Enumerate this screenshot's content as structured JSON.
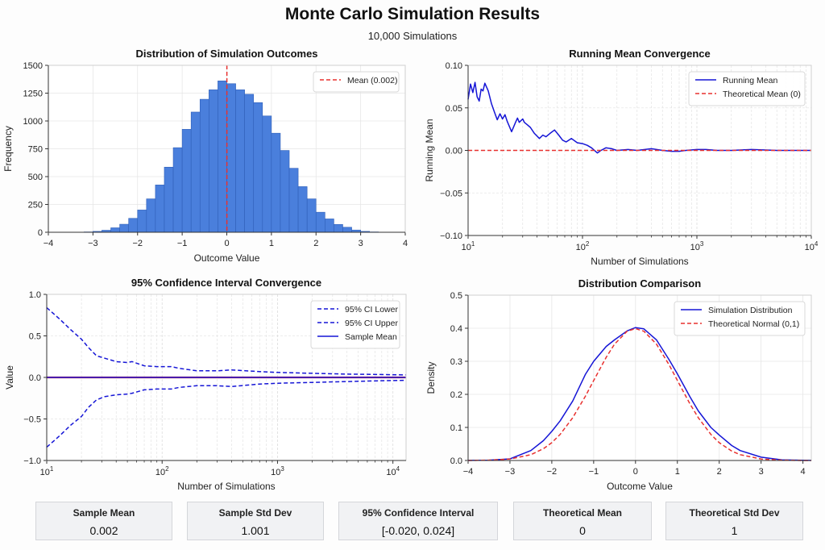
{
  "header": {
    "title": "Monte Carlo Simulation Results",
    "subtitle": "10,000 Simulations"
  },
  "chart_data": [
    {
      "id": "histogram",
      "type": "bar",
      "title": "Distribution of Simulation Outcomes",
      "xlabel": "Outcome Value",
      "ylabel": "Frequency",
      "xlim": [
        -4,
        4
      ],
      "ylim": [
        0,
        1500
      ],
      "xticks": [
        "−4",
        "−3",
        "−2",
        "−1",
        "0",
        "1",
        "2",
        "3",
        "4"
      ],
      "yticks": [
        "0",
        "250",
        "500",
        "750",
        "1000",
        "1250",
        "1500"
      ],
      "bin_width": 0.2,
      "bin_starts": [
        -3.4,
        -3.2,
        -3.0,
        -2.8,
        -2.6,
        -2.4,
        -2.2,
        -2.0,
        -1.8,
        -1.6,
        -1.4,
        -1.2,
        -1.0,
        -0.8,
        -0.6,
        -0.4,
        -0.2,
        0.0,
        0.2,
        0.4,
        0.6,
        0.8,
        1.0,
        1.2,
        1.4,
        1.6,
        1.8,
        2.0,
        2.2,
        2.4,
        2.6,
        2.8,
        3.0,
        3.2
      ],
      "values": [
        1,
        3,
        8,
        18,
        40,
        72,
        125,
        200,
        300,
        425,
        585,
        760,
        925,
        1080,
        1195,
        1280,
        1360,
        1335,
        1280,
        1240,
        1165,
        1045,
        890,
        735,
        575,
        410,
        300,
        180,
        120,
        70,
        45,
        20,
        8,
        3
      ],
      "mean_line": {
        "x": 0.002,
        "color": "#e8312f"
      },
      "legend": [
        {
          "label": "Mean (0.002)",
          "style": "dashed",
          "color": "#e8312f"
        }
      ],
      "legend_position": "top-right",
      "bar_color": "#4a7fdc",
      "grid": true
    },
    {
      "id": "running-mean",
      "type": "line",
      "title": "Running Mean Convergence",
      "xlabel": "Number of Simulations",
      "ylabel": "Running Mean",
      "xscale": "log",
      "xlim": [
        10,
        10000
      ],
      "ylim": [
        -0.1,
        0.1
      ],
      "xticks": [
        "10^1",
        "10^2",
        "10^3",
        "10^4"
      ],
      "yticks": [
        "−0.10",
        "−0.05",
        "0.00",
        "0.05",
        "0.10"
      ],
      "series": [
        {
          "name": "Running Mean",
          "color": "#1515d6",
          "style": "solid",
          "x": [
            10,
            10.5,
            11,
            11.5,
            12,
            12.5,
            13,
            13.5,
            14,
            15,
            16,
            17,
            18,
            19,
            20,
            21,
            22,
            24,
            26,
            27,
            28,
            30,
            31,
            33,
            35,
            38,
            42,
            45,
            48,
            52,
            57,
            62,
            67,
            72,
            80,
            90,
            100,
            110,
            120,
            135,
            145,
            160,
            180,
            200,
            250,
            300,
            350,
            400,
            500,
            600,
            700,
            800,
            1000,
            1200,
            1500,
            2000,
            3000,
            5000,
            7000,
            10000
          ],
          "y": [
            0.06,
            0.078,
            0.068,
            0.08,
            0.063,
            0.058,
            0.072,
            0.07,
            0.079,
            0.07,
            0.055,
            0.045,
            0.036,
            0.043,
            0.037,
            0.042,
            0.034,
            0.022,
            0.033,
            0.038,
            0.033,
            0.037,
            0.033,
            0.03,
            0.027,
            0.02,
            0.014,
            0.018,
            0.016,
            0.02,
            0.024,
            0.018,
            0.012,
            0.01,
            0.014,
            0.009,
            0.008,
            0.006,
            0.003,
            -0.003,
            0.0,
            0.003,
            0.002,
            0.0,
            0.001,
            0.0,
            0.001,
            0.002,
            0.0,
            -0.001,
            -0.001,
            0.0,
            0.001,
            0.001,
            0.0,
            0.0,
            0.001,
            0.0,
            0.0,
            0.0
          ]
        },
        {
          "name": "Theoretical Mean (0)",
          "color": "#e8312f",
          "style": "dashed",
          "x": [
            10,
            10000
          ],
          "y": [
            0,
            0
          ]
        }
      ],
      "legend_position": "top-right",
      "grid": true
    },
    {
      "id": "ci-convergence",
      "type": "line",
      "title": "95% Confidence Interval Convergence",
      "xlabel": "Number of Simulations",
      "ylabel": "Value",
      "xscale": "log",
      "xlim": [
        10,
        13000
      ],
      "ylim": [
        -1.0,
        1.0
      ],
      "xticks": [
        "10^1",
        "10^2",
        "10^3",
        "10^4"
      ],
      "yticks": [
        "−1.0",
        "−0.5",
        "0.0",
        "0.5",
        "1.0"
      ],
      "series": [
        {
          "name": "95% CI Lower",
          "color": "#1515d6",
          "style": "dashed",
          "x": [
            10,
            13,
            16,
            20,
            23,
            27,
            32,
            40,
            50,
            55,
            70,
            90,
            120,
            140,
            200,
            300,
            400,
            700,
            1000,
            2000,
            4000,
            8000,
            13000
          ],
          "y": [
            -0.84,
            -0.7,
            -0.58,
            -0.47,
            -0.36,
            -0.27,
            -0.23,
            -0.21,
            -0.2,
            -0.19,
            -0.15,
            -0.14,
            -0.14,
            -0.12,
            -0.1,
            -0.1,
            -0.11,
            -0.08,
            -0.07,
            -0.06,
            -0.05,
            -0.04,
            -0.035
          ]
        },
        {
          "name": "95% CI Upper",
          "color": "#1515d6",
          "style": "dashed",
          "x": [
            10,
            13,
            16,
            20,
            23,
            27,
            32,
            40,
            50,
            55,
            70,
            90,
            120,
            140,
            200,
            300,
            400,
            700,
            1000,
            2000,
            4000,
            8000,
            13000
          ],
          "y": [
            0.84,
            0.7,
            0.58,
            0.46,
            0.36,
            0.26,
            0.23,
            0.19,
            0.18,
            0.19,
            0.14,
            0.13,
            0.13,
            0.11,
            0.08,
            0.08,
            0.09,
            0.07,
            0.06,
            0.05,
            0.04,
            0.035,
            0.03
          ]
        },
        {
          "name": "Sample Mean",
          "color": "#1515d6",
          "style": "solid",
          "x": [
            10,
            13000
          ],
          "y": [
            0.0,
            0.0
          ]
        }
      ],
      "reference_line": {
        "y": 0,
        "color": "#e8312f"
      },
      "legend_position": "top-right",
      "grid": true
    },
    {
      "id": "distribution-comparison",
      "type": "line",
      "title": "Distribution Comparison",
      "xlabel": "Outcome Value",
      "ylabel": "Density",
      "xlim": [
        -4,
        4.2
      ],
      "ylim": [
        0,
        0.5
      ],
      "xticks": [
        "−4",
        "−3",
        "−2",
        "−1",
        "0",
        "1",
        "2",
        "3",
        "4"
      ],
      "yticks": [
        "0.0",
        "0.1",
        "0.2",
        "0.3",
        "0.4",
        "0.5"
      ],
      "series": [
        {
          "name": "Simulation Distribution",
          "color": "#1515d6",
          "style": "solid",
          "x": [
            -4.0,
            -3.5,
            -3.0,
            -2.5,
            -2.2,
            -2.0,
            -1.8,
            -1.5,
            -1.2,
            -1.0,
            -0.7,
            -0.5,
            -0.2,
            0.0,
            0.2,
            0.5,
            0.8,
            1.0,
            1.3,
            1.5,
            1.8,
            2.0,
            2.3,
            2.5,
            3.0,
            3.5,
            4.0,
            4.2
          ],
          "y": [
            0.0002,
            0.001,
            0.005,
            0.03,
            0.06,
            0.088,
            0.12,
            0.18,
            0.26,
            0.3,
            0.345,
            0.365,
            0.392,
            0.402,
            0.398,
            0.365,
            0.305,
            0.262,
            0.193,
            0.15,
            0.1,
            0.077,
            0.045,
            0.03,
            0.01,
            0.002,
            0.0004,
            0.0002
          ]
        },
        {
          "name": "Theoretical Normal (0,1)",
          "color": "#e8312f",
          "style": "dashed",
          "x": [
            -4.0,
            -3.5,
            -3.0,
            -2.5,
            -2.2,
            -2.0,
            -1.8,
            -1.5,
            -1.2,
            -1.0,
            -0.7,
            -0.5,
            -0.2,
            0.0,
            0.2,
            0.5,
            0.8,
            1.0,
            1.3,
            1.5,
            1.8,
            2.0,
            2.3,
            2.5,
            3.0,
            3.5,
            4.0,
            4.2
          ],
          "y": [
            0.0001,
            0.0009,
            0.0044,
            0.0175,
            0.0355,
            0.054,
            0.079,
            0.1295,
            0.194,
            0.242,
            0.312,
            0.352,
            0.391,
            0.3989,
            0.391,
            0.352,
            0.2897,
            0.242,
            0.1714,
            0.1295,
            0.079,
            0.054,
            0.0283,
            0.0175,
            0.0044,
            0.0009,
            0.0001,
            0.0001
          ]
        }
      ],
      "legend_position": "top-right",
      "grid": true
    }
  ],
  "summary_cards": [
    {
      "label": "Sample Mean",
      "value": "0.002"
    },
    {
      "label": "Sample Std Dev",
      "value": "1.001"
    },
    {
      "label": "95% Confidence Interval",
      "value": "[-0.020, 0.024]"
    },
    {
      "label": "Theoretical Mean",
      "value": "0"
    },
    {
      "label": "Theoretical Std Dev",
      "value": "1"
    }
  ]
}
